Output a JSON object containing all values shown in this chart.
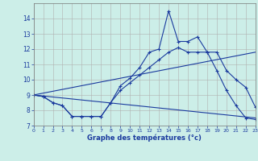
{
  "xlabel": "Graphe des températures (°c)",
  "bg_color": "#cceee8",
  "line_color": "#1a3a9e",
  "grid_color": "#b0b0b0",
  "xlim": [
    0,
    23
  ],
  "ylim": [
    7,
    15
  ],
  "yticks": [
    7,
    8,
    9,
    10,
    11,
    12,
    13,
    14
  ],
  "xticks": [
    0,
    1,
    2,
    3,
    4,
    5,
    6,
    7,
    8,
    9,
    10,
    11,
    12,
    13,
    14,
    15,
    16,
    17,
    18,
    19,
    20,
    21,
    22,
    23
  ],
  "curve1_x": [
    0,
    1,
    2,
    3,
    4,
    5,
    6,
    7,
    8,
    9,
    10,
    11,
    12,
    13,
    14,
    15,
    16,
    17,
    18,
    19,
    20,
    21,
    22,
    23
  ],
  "curve1_y": [
    9.0,
    8.9,
    8.5,
    8.3,
    7.6,
    7.6,
    7.6,
    7.6,
    8.5,
    9.6,
    10.1,
    10.8,
    11.8,
    12.0,
    14.5,
    12.5,
    12.5,
    12.8,
    11.8,
    10.6,
    9.3,
    8.3,
    7.5,
    7.4
  ],
  "curve2_x": [
    0,
    1,
    2,
    3,
    4,
    5,
    6,
    7,
    8,
    9,
    10,
    11,
    12,
    13,
    14,
    15,
    16,
    17,
    18,
    19,
    20,
    21,
    22,
    23
  ],
  "curve2_y": [
    9.0,
    8.9,
    8.5,
    8.3,
    7.6,
    7.6,
    7.6,
    7.6,
    8.5,
    9.3,
    9.8,
    10.3,
    10.8,
    11.3,
    11.8,
    12.1,
    11.8,
    11.8,
    11.8,
    11.8,
    10.6,
    10.0,
    9.5,
    8.2
  ],
  "line1_x": [
    0,
    23
  ],
  "line1_y": [
    9.0,
    11.8
  ],
  "line2_x": [
    0,
    23
  ],
  "line2_y": [
    9.0,
    7.5
  ]
}
